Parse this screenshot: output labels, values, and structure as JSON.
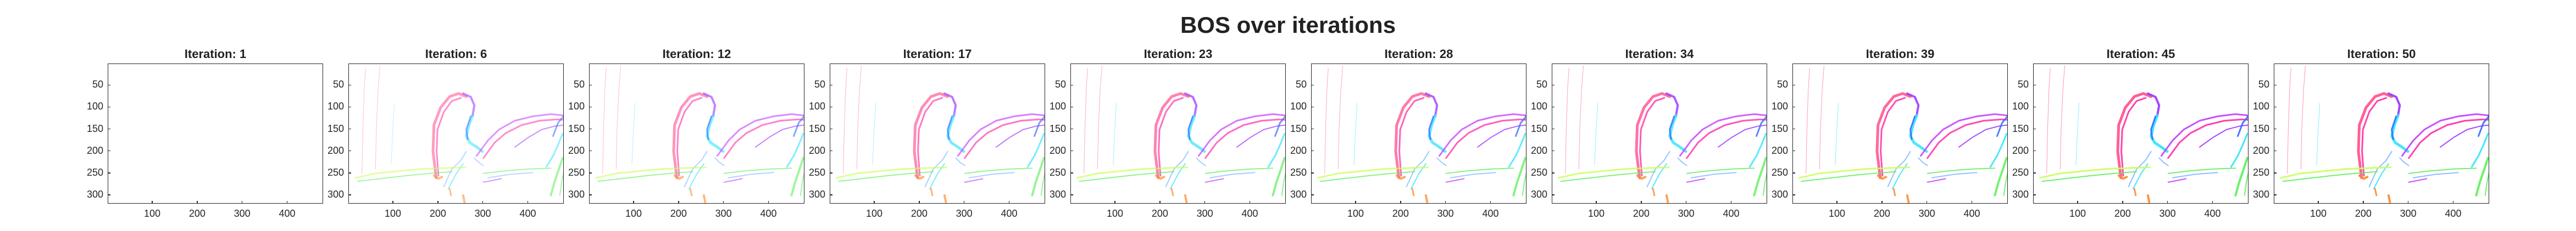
{
  "title": "BOS over iterations",
  "chart_data": [
    {
      "type": "heatmap",
      "title": "Iteration: 1",
      "iteration": 1,
      "empty": true
    },
    {
      "type": "heatmap",
      "title": "Iteration: 6",
      "iteration": 6,
      "empty": false
    },
    {
      "type": "heatmap",
      "title": "Iteration: 12",
      "iteration": 12,
      "empty": false
    },
    {
      "type": "heatmap",
      "title": "Iteration: 17",
      "iteration": 17,
      "empty": false
    },
    {
      "type": "heatmap",
      "title": "Iteration: 23",
      "iteration": 23,
      "empty": false
    },
    {
      "type": "heatmap",
      "title": "Iteration: 28",
      "iteration": 28,
      "empty": false
    },
    {
      "type": "heatmap",
      "title": "Iteration: 34",
      "iteration": 34,
      "empty": false
    },
    {
      "type": "heatmap",
      "title": "Iteration: 39",
      "iteration": 39,
      "empty": false
    },
    {
      "type": "heatmap",
      "title": "Iteration: 45",
      "iteration": 45,
      "empty": false
    },
    {
      "type": "heatmap",
      "title": "Iteration: 50",
      "iteration": 50,
      "empty": false
    }
  ],
  "axes": {
    "xlim": [
      1,
      480
    ],
    "ylim": [
      1,
      320
    ],
    "y_reversed": true,
    "xticks": [
      100,
      200,
      300,
      400
    ],
    "yticks": [
      50,
      100,
      150,
      200,
      250,
      300
    ]
  },
  "colors": {
    "magenta": "#ff2ea6",
    "pink": "#ff4f8a",
    "purple": "#9a33ff",
    "violet": "#c43cff",
    "cyan": "#2fe3ff",
    "blue": "#2f6dff",
    "green": "#5df05a",
    "yellowgreen": "#c8ff5a",
    "orange": "#ff8a2a",
    "lightblue": "#7fb8ff"
  }
}
